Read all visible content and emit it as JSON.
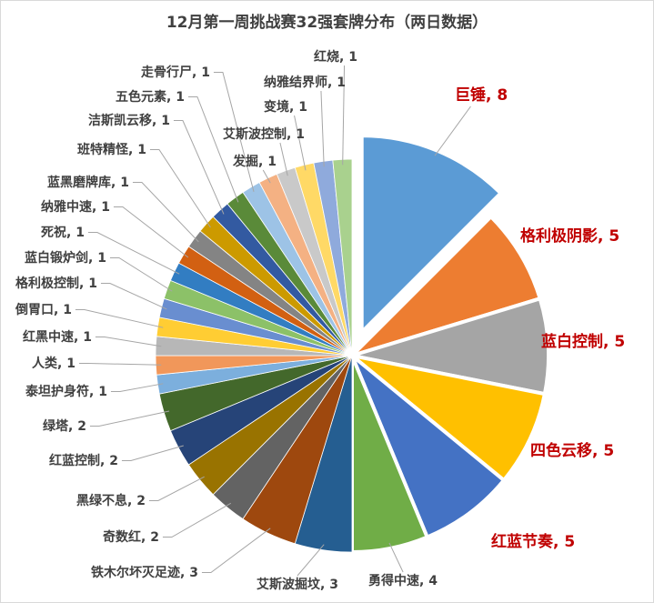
{
  "chart_data": {
    "type": "pie",
    "title": "12月第一周挑战赛32强套牌分布（两日数据）",
    "start_angle": "top, clockwise",
    "exploded": [
      "巨锤"
    ],
    "highlight_label_color": "#C00000",
    "slices": [
      {
        "label": "巨锤",
        "value": 8,
        "color": "#5B9BD5"
      },
      {
        "label": "格利极阴影",
        "value": 5,
        "color": "#ED7D31"
      },
      {
        "label": "蓝白控制",
        "value": 5,
        "color": "#A5A5A5"
      },
      {
        "label": "四色云移",
        "value": 5,
        "color": "#FFC000"
      },
      {
        "label": "红蓝节奏",
        "value": 5,
        "color": "#4472C4"
      },
      {
        "label": "勇得中速",
        "value": 4,
        "color": "#70AD47"
      },
      {
        "label": "艾斯波掘坟",
        "value": 3,
        "color": "#255E91"
      },
      {
        "label": "铁木尔坏灭足迹",
        "value": 3,
        "color": "#9E480E"
      },
      {
        "label": "奇数红",
        "value": 2,
        "color": "#636363"
      },
      {
        "label": "黑绿不息",
        "value": 2,
        "color": "#997300"
      },
      {
        "label": "红蓝控制",
        "value": 2,
        "color": "#264478"
      },
      {
        "label": "绿塔",
        "value": 2,
        "color": "#43682B"
      },
      {
        "label": "泰坦护身符",
        "value": 1,
        "color": "#7CAFDD"
      },
      {
        "label": "人类",
        "value": 1,
        "color": "#F1975A"
      },
      {
        "label": "红黑中速",
        "value": 1,
        "color": "#B7B7B7"
      },
      {
        "label": "倒胃口",
        "value": 1,
        "color": "#FFCD33"
      },
      {
        "label": "格利极控制",
        "value": 1,
        "color": "#698ED0"
      },
      {
        "label": "蓝白锻炉剑",
        "value": 1,
        "color": "#8CC168"
      },
      {
        "label": "死祝",
        "value": 1,
        "color": "#327DC2"
      },
      {
        "label": "纳雅中速",
        "value": 1,
        "color": "#D26012"
      },
      {
        "label": "蓝黑磨牌库",
        "value": 1,
        "color": "#848484"
      },
      {
        "label": "班特精怪",
        "value": 1,
        "color": "#CC9A00"
      },
      {
        "label": "洁斯凯云移",
        "value": 1,
        "color": "#335AA1"
      },
      {
        "label": "五色元素",
        "value": 1,
        "color": "#5A8A39"
      },
      {
        "label": "走骨行尸",
        "value": 1,
        "color": "#9DC3E6"
      },
      {
        "label": "发掘",
        "value": 1,
        "color": "#F4B183"
      },
      {
        "label": "艾斯波控制",
        "value": 1,
        "color": "#C9C9C9"
      },
      {
        "label": "变境",
        "value": 1,
        "color": "#FFD966"
      },
      {
        "label": "纳雅结界师",
        "value": 1,
        "color": "#8FAADC"
      },
      {
        "label": "红烧",
        "value": 1,
        "color": "#A9D18E"
      }
    ]
  }
}
